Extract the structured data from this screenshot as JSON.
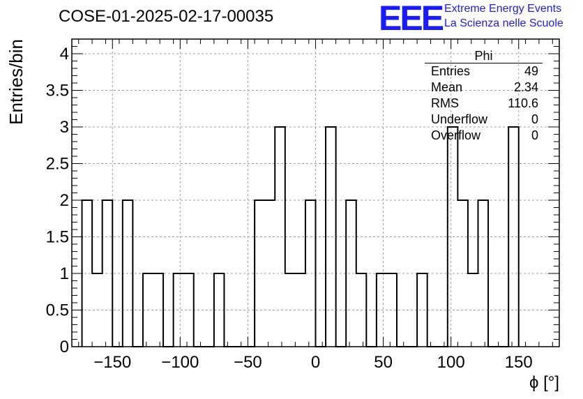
{
  "header": {
    "run_title": "COSE-01-2025-02-17-00035",
    "logo_text": "EEE",
    "logo_line1": "Extreme Energy Events",
    "logo_line2": "La Scienza nelle Scuole"
  },
  "stats": {
    "title": "Phi",
    "rows": [
      {
        "label": "Entries",
        "value": "49"
      },
      {
        "label": "Mean",
        "value": "2.34"
      },
      {
        "label": "RMS",
        "value": "110.6"
      },
      {
        "label": "Underflow",
        "value": "0"
      },
      {
        "label": "Overflow",
        "value": "0"
      }
    ]
  },
  "chart_data": {
    "type": "bar",
    "style": "step-histogram",
    "title": "COSE-01-2025-02-17-00035",
    "xlabel": "ϕ [°]",
    "ylabel": "Entries/bin",
    "xlim": [
      -180,
      180
    ],
    "ylim": [
      0,
      4.2
    ],
    "bin_width": 7.5,
    "grid": true,
    "legend": "top-right stats box",
    "xticks": [
      "−150",
      "−100",
      "−50",
      "0",
      "50",
      "100",
      "150"
    ],
    "xtick_values": [
      -150,
      -100,
      -50,
      0,
      50,
      100,
      150
    ],
    "yticks": [
      "0",
      "0.5",
      "1",
      "1.5",
      "2",
      "2.5",
      "3",
      "3.5",
      "4"
    ],
    "ytick_values": [
      0,
      0.5,
      1,
      1.5,
      2,
      2.5,
      3,
      3.5,
      4
    ],
    "bins": [
      {
        "x0": -172.5,
        "x1": -165,
        "y": 2
      },
      {
        "x0": -165,
        "x1": -157.5,
        "y": 1
      },
      {
        "x0": -157.5,
        "x1": -150,
        "y": 2
      },
      {
        "x0": -150,
        "x1": -142.5,
        "y": 0
      },
      {
        "x0": -142.5,
        "x1": -135,
        "y": 2
      },
      {
        "x0": -135,
        "x1": -127.5,
        "y": 0
      },
      {
        "x0": -127.5,
        "x1": -120,
        "y": 1
      },
      {
        "x0": -120,
        "x1": -112.5,
        "y": 1
      },
      {
        "x0": -112.5,
        "x1": -105,
        "y": 0
      },
      {
        "x0": -105,
        "x1": -97.5,
        "y": 1
      },
      {
        "x0": -97.5,
        "x1": -90,
        "y": 1
      },
      {
        "x0": -90,
        "x1": -82.5,
        "y": 0
      },
      {
        "x0": -82.5,
        "x1": -75,
        "y": 0
      },
      {
        "x0": -75,
        "x1": -67.5,
        "y": 1
      },
      {
        "x0": -67.5,
        "x1": -60,
        "y": 0
      },
      {
        "x0": -60,
        "x1": -52.5,
        "y": 0
      },
      {
        "x0": -52.5,
        "x1": -45,
        "y": 0
      },
      {
        "x0": -45,
        "x1": -37.5,
        "y": 2
      },
      {
        "x0": -37.5,
        "x1": -30,
        "y": 2
      },
      {
        "x0": -30,
        "x1": -22.5,
        "y": 3
      },
      {
        "x0": -22.5,
        "x1": -15,
        "y": 1
      },
      {
        "x0": -15,
        "x1": -7.5,
        "y": 1
      },
      {
        "x0": -7.5,
        "x1": 0,
        "y": 2
      },
      {
        "x0": 0,
        "x1": 7.5,
        "y": 0
      },
      {
        "x0": 7.5,
        "x1": 15,
        "y": 3
      },
      {
        "x0": 15,
        "x1": 22.5,
        "y": 0
      },
      {
        "x0": 22.5,
        "x1": 30,
        "y": 2
      },
      {
        "x0": 30,
        "x1": 37.5,
        "y": 1
      },
      {
        "x0": 37.5,
        "x1": 45,
        "y": 0
      },
      {
        "x0": 45,
        "x1": 52.5,
        "y": 1
      },
      {
        "x0": 52.5,
        "x1": 60,
        "y": 1
      },
      {
        "x0": 60,
        "x1": 67.5,
        "y": 0
      },
      {
        "x0": 67.5,
        "x1": 75,
        "y": 0
      },
      {
        "x0": 75,
        "x1": 82.5,
        "y": 1
      },
      {
        "x0": 82.5,
        "x1": 90,
        "y": 0
      },
      {
        "x0": 90,
        "x1": 97.5,
        "y": 0
      },
      {
        "x0": 97.5,
        "x1": 105,
        "y": 3
      },
      {
        "x0": 105,
        "x1": 112.5,
        "y": 2
      },
      {
        "x0": 112.5,
        "x1": 120,
        "y": 1
      },
      {
        "x0": 120,
        "x1": 127.5,
        "y": 2
      },
      {
        "x0": 127.5,
        "x1": 135,
        "y": 0
      },
      {
        "x0": 135,
        "x1": 142.5,
        "y": 0
      },
      {
        "x0": 142.5,
        "x1": 150,
        "y": 3
      }
    ],
    "colors": {
      "line": "#000000",
      "grid": "#a0a0a0",
      "logo": "#1a1aff"
    }
  }
}
